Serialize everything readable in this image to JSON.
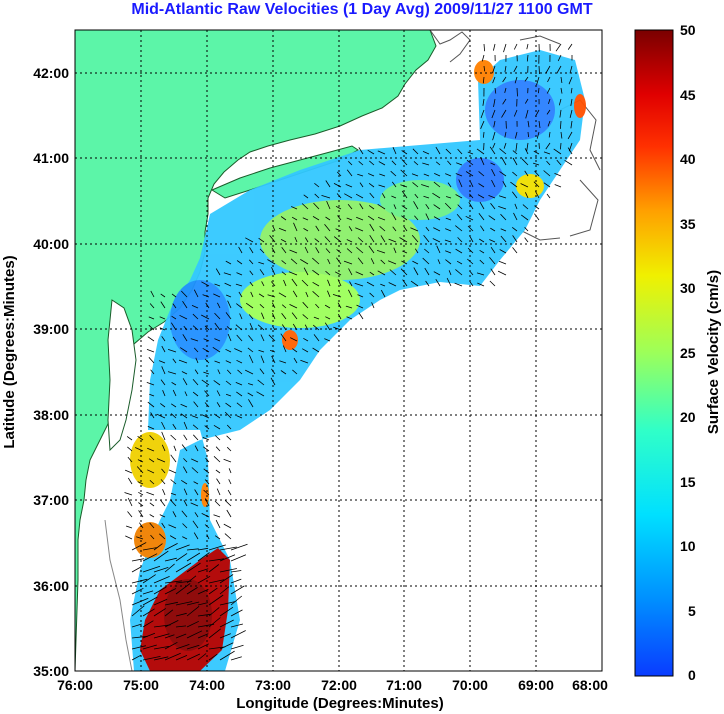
{
  "title": "Mid-Atlantic Raw Velocities (1 Day Avg) 2009/11/27 1100 GMT",
  "map": {
    "xlabel": "Longitude (Degrees:Minutes)",
    "ylabel": "Latitude (Degrees:Minutes)",
    "xticks": [
      "76:00",
      "75:00",
      "74:00",
      "73:00",
      "72:00",
      "71:00",
      "70:00",
      "69:00",
      "68:00"
    ],
    "yticks": [
      "42:00",
      "41:00",
      "40:00",
      "39:00",
      "38:00",
      "37:00",
      "36:00",
      "35:00"
    ],
    "x_range": [
      -76,
      -68
    ],
    "y_range": [
      35,
      42.5
    ],
    "colors": {
      "land": "#5cf5a8",
      "coast": "#1a5c2a",
      "grid": "#000000"
    }
  },
  "colorbar": {
    "label": "Surface Velocity (cm/s)",
    "ticks": [
      "50",
      "45",
      "40",
      "35",
      "30",
      "25",
      "20",
      "15",
      "10",
      "5",
      "0"
    ],
    "range": [
      0,
      50
    ]
  }
}
